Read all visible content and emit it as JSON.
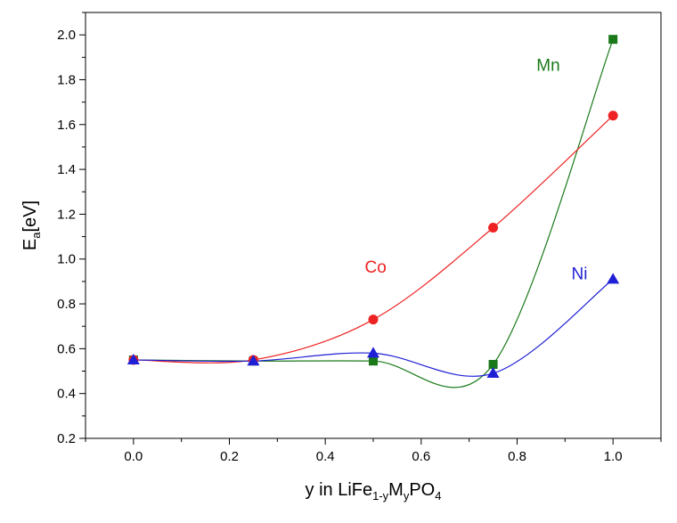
{
  "chart_data": {
    "type": "scatter",
    "xlabel": {
      "main": "y in LiFe",
      "sub1": "1-y",
      "mid": "M",
      "sub2": "y",
      "tail": "PO",
      "sub3": "4"
    },
    "ylabel": {
      "main": "E",
      "sub": "a",
      "tail": "[eV]"
    },
    "xlim": [
      -0.1,
      1.1
    ],
    "ylim": [
      0.2,
      2.1
    ],
    "xticks": [
      "0.0",
      "0.2",
      "0.4",
      "0.6",
      "0.8",
      "1.0"
    ],
    "yticks": [
      "0.2",
      "0.4",
      "0.6",
      "0.8",
      "1.0",
      "1.2",
      "1.4",
      "1.6",
      "1.8",
      "2.0"
    ],
    "grid": false,
    "legend": "none",
    "series": [
      {
        "name": "Mn",
        "color": "#1a7a1a",
        "marker": "square",
        "x": [
          0.0,
          0.25,
          0.5,
          0.75,
          1.0
        ],
        "y": [
          0.55,
          0.545,
          0.545,
          0.53,
          1.98
        ],
        "label_anchor": [
          0.865,
          1.84
        ]
      },
      {
        "name": "Co",
        "color": "#ee2222",
        "marker": "circle",
        "x": [
          0.0,
          0.25,
          0.5,
          0.75,
          1.0
        ],
        "y": [
          0.55,
          0.55,
          0.73,
          1.14,
          1.64
        ],
        "label_anchor": [
          0.505,
          0.94
        ]
      },
      {
        "name": "Ni",
        "color": "#1f1fd6",
        "marker": "triangle",
        "x": [
          0.0,
          0.25,
          0.5,
          0.75,
          1.0
        ],
        "y": [
          0.55,
          0.545,
          0.58,
          0.49,
          0.91
        ],
        "label_anchor": [
          0.93,
          0.91
        ]
      }
    ]
  }
}
